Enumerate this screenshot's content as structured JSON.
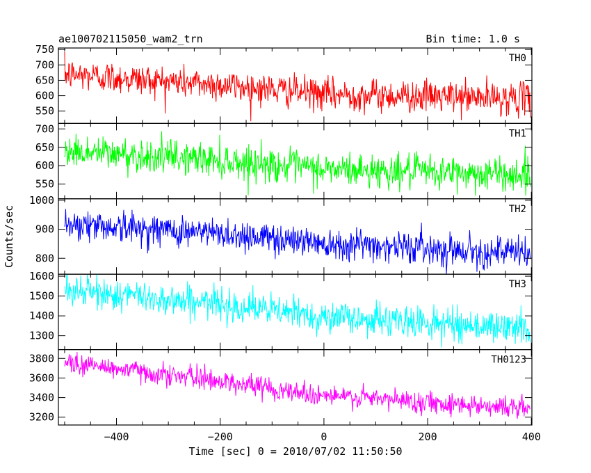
{
  "chart_data": {
    "type": "line",
    "title": "ae100702115050_wam2_trn",
    "bin_time_label": "Bin time: 1.0 s",
    "xlabel": "Time [sec] 0 = 2010/07/02 11:50:50",
    "ylabel": "Counts/sec",
    "xlim": [
      -512,
      401
    ],
    "x_ticks": [
      -400,
      -200,
      0,
      200,
      400
    ],
    "x_tick_labels": [
      "−400",
      "−200",
      "0",
      "200",
      "400"
    ],
    "x_start": -500,
    "x_end": 398,
    "bin_time_sec": 1.0,
    "panels": [
      {
        "name": "TH0",
        "color": "#ff0000",
        "ylim": [
          510,
          755
        ],
        "y_ticks": [
          550,
          600,
          650,
          700,
          750
        ],
        "y_tick_labels": [
          "550",
          "600",
          "650",
          "700",
          "750"
        ],
        "trend": [
          {
            "x": -500,
            "y": 670
          },
          {
            "x": -200,
            "y": 635
          },
          {
            "x": 0,
            "y": 605
          },
          {
            "x": 398,
            "y": 590
          }
        ],
        "noise_sd": 26
      },
      {
        "name": "TH1",
        "color": "#00ff00",
        "ylim": [
          510,
          715
        ],
        "y_ticks": [
          550,
          600,
          650,
          700
        ],
        "y_tick_labels": [
          "550",
          "600",
          "650",
          "700"
        ],
        "trend": [
          {
            "x": -500,
            "y": 640
          },
          {
            "x": -200,
            "y": 615
          },
          {
            "x": 0,
            "y": 590
          },
          {
            "x": 398,
            "y": 575
          }
        ],
        "noise_sd": 23
      },
      {
        "name": "TH2",
        "color": "#0000ff",
        "ylim": [
          745,
          1005
        ],
        "y_ticks": [
          800,
          900,
          1000
        ],
        "y_tick_labels": [
          "800",
          "900",
          "1000"
        ],
        "trend": [
          {
            "x": -500,
            "y": 920
          },
          {
            "x": -200,
            "y": 885
          },
          {
            "x": 0,
            "y": 855
          },
          {
            "x": 398,
            "y": 815
          }
        ],
        "noise_sd": 27
      },
      {
        "name": "TH3",
        "color": "#00ffff",
        "ylim": [
          1230,
          1610
        ],
        "y_ticks": [
          1300,
          1400,
          1500,
          1600
        ],
        "y_tick_labels": [
          "1300",
          "1400",
          "1500",
          "1600"
        ],
        "trend": [
          {
            "x": -500,
            "y": 1530
          },
          {
            "x": -200,
            "y": 1460
          },
          {
            "x": 0,
            "y": 1395
          },
          {
            "x": 398,
            "y": 1335
          }
        ],
        "noise_sd": 40
      },
      {
        "name": "TH0123",
        "color": "#ff00ff",
        "ylim": [
          3120,
          3890
        ],
        "y_ticks": [
          3200,
          3400,
          3600,
          3800
        ],
        "y_tick_labels": [
          "3200",
          "3400",
          "3600",
          "3800"
        ],
        "trend": [
          {
            "x": -500,
            "y": 3760
          },
          {
            "x": -200,
            "y": 3570
          },
          {
            "x": 0,
            "y": 3420
          },
          {
            "x": 398,
            "y": 3290
          }
        ],
        "noise_sd": 55
      }
    ],
    "grid": false,
    "legend": "none"
  }
}
